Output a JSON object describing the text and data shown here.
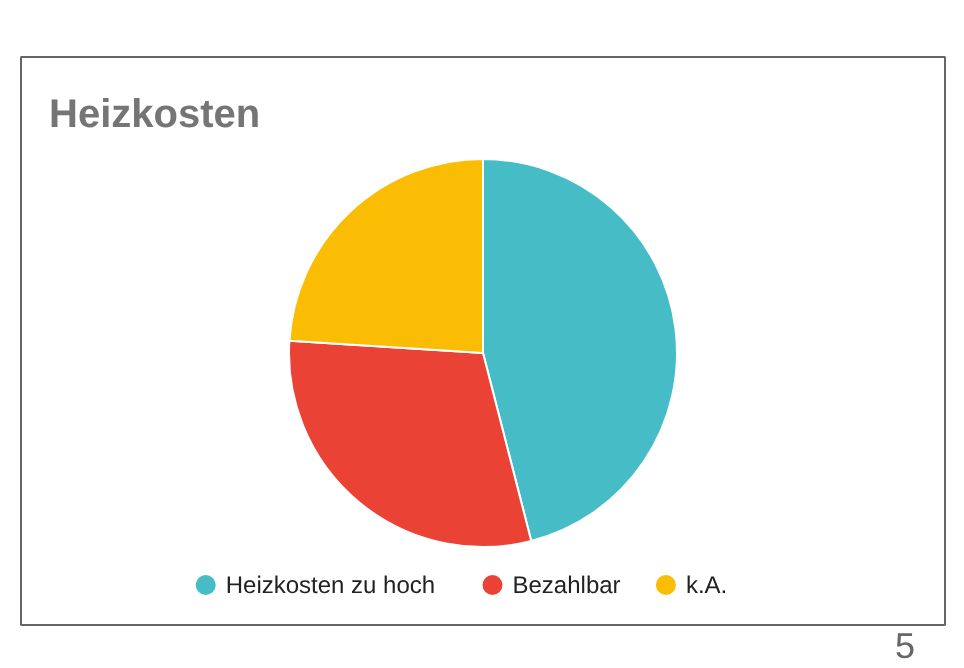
{
  "chart_data": {
    "type": "pie",
    "title": "Heizkosten",
    "categories": [
      "Heizkosten zu hoch",
      "Bezahlbar",
      "k.A."
    ],
    "values": [
      46,
      30,
      24
    ],
    "colors": [
      "#46bdc6",
      "#ea4335",
      "#fbbc04"
    ],
    "legend": "bottom",
    "annotations": [
      "5"
    ]
  }
}
